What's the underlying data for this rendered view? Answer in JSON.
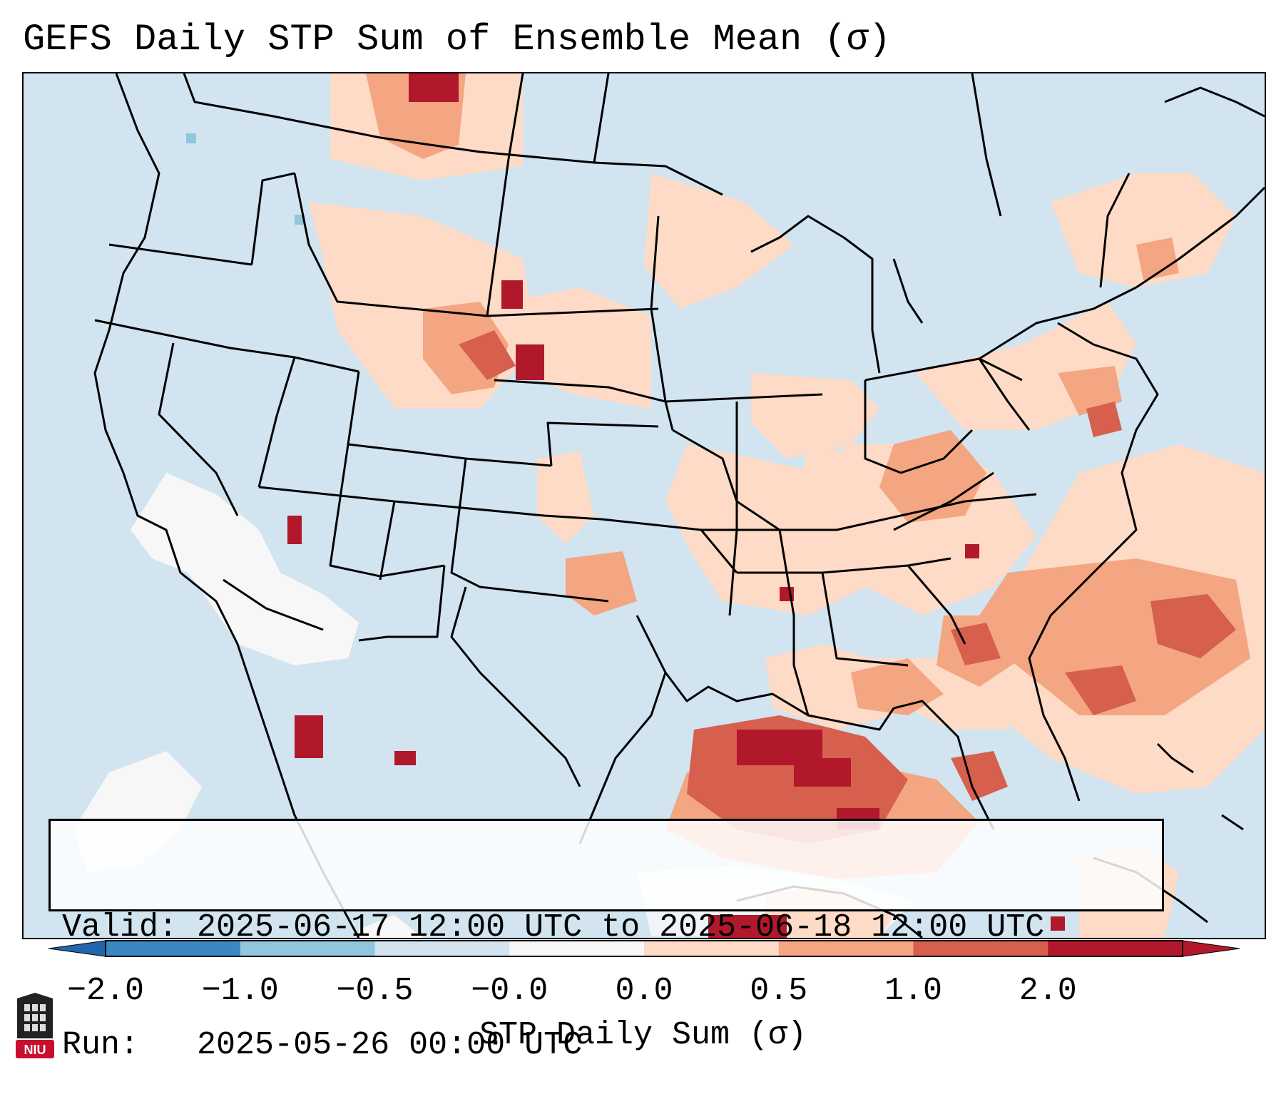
{
  "title": "GEFS Daily STP Sum of Ensemble Mean (σ)",
  "valid_box": {
    "valid_label": "Valid:",
    "valid_value": "2025-06-17 12:00 UTC to 2025-06-18 12:00 UTC",
    "run_label": "Run:",
    "run_value": "2025-05-26 00:00 UTC"
  },
  "colorbar": {
    "ticks": [
      "−2.0",
      "−1.0",
      "−0.5",
      "−0.0",
      "0.0",
      "0.5",
      "1.0",
      "2.0"
    ],
    "colors": [
      "#3b87c2",
      "#92c5de",
      "#d1e4f0",
      "#f7f7f7",
      "#fddbc7",
      "#f4a582",
      "#d6604d",
      "#b2182b"
    ],
    "under_color": "#2166ac",
    "over_color": "#b2182b",
    "label": "STP Daily Sum (σ)"
  },
  "colors": {
    "ocean_land_background": "#d1e4f0",
    "boundary_lines": "#000000"
  },
  "logo": {
    "text": "NIU",
    "name": "northern-illinois-university-logo"
  }
}
